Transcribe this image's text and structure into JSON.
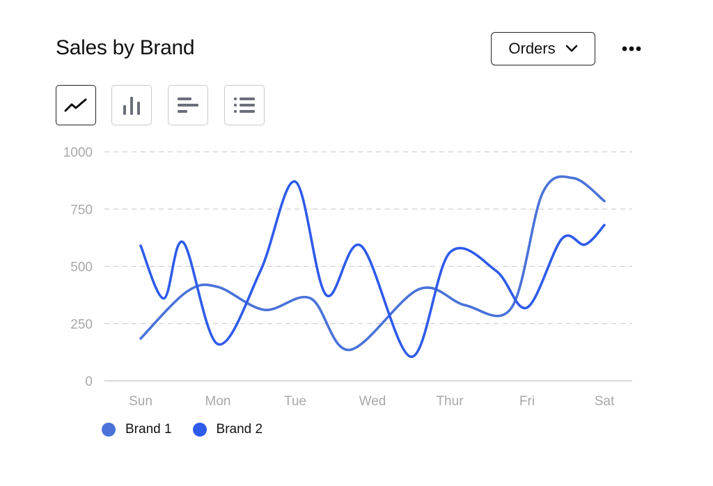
{
  "header": {
    "title": "Sales by Brand",
    "metric_selected": "Orders"
  },
  "toolbar": {
    "buttons": [
      {
        "icon": "line-chart-icon",
        "active": true
      },
      {
        "icon": "bar-chart-icon",
        "active": false
      },
      {
        "icon": "horizontal-bar-chart-icon",
        "active": false
      },
      {
        "icon": "list-icon",
        "active": false
      }
    ]
  },
  "colors": {
    "brand1": "#4a72d8",
    "brand2": "#2f5bea",
    "gridline": "#cfcfcf",
    "tick_text": "#a8a8a8"
  },
  "chart_data": {
    "type": "line",
    "categories": [
      "Sun",
      "Mon",
      "Tue",
      "Wed",
      "Thur",
      "Fri",
      "Sat"
    ],
    "ylim": [
      0,
      1000
    ],
    "yticks": [
      0,
      250,
      500,
      750,
      1000
    ],
    "grid": true,
    "legend_position": "bottom-left",
    "series": [
      {
        "name": "Brand 1",
        "x": [
          0,
          0.6,
          1.0,
          1.6,
          2.2,
          2.7,
          3.6,
          4.2,
          4.8,
          5.2,
          5.6,
          6.0
        ],
        "values": [
          185,
          390,
          410,
          310,
          360,
          135,
          400,
          330,
          320,
          820,
          885,
          785
        ]
      },
      {
        "name": "Brand 2",
        "x": [
          0,
          0.3,
          0.55,
          1.0,
          1.55,
          2.0,
          2.4,
          2.85,
          3.5,
          4.0,
          4.6,
          5.0,
          5.45,
          5.75,
          6.0
        ],
        "values": [
          590,
          360,
          605,
          160,
          480,
          870,
          375,
          590,
          105,
          560,
          480,
          320,
          620,
          595,
          680
        ]
      }
    ]
  }
}
